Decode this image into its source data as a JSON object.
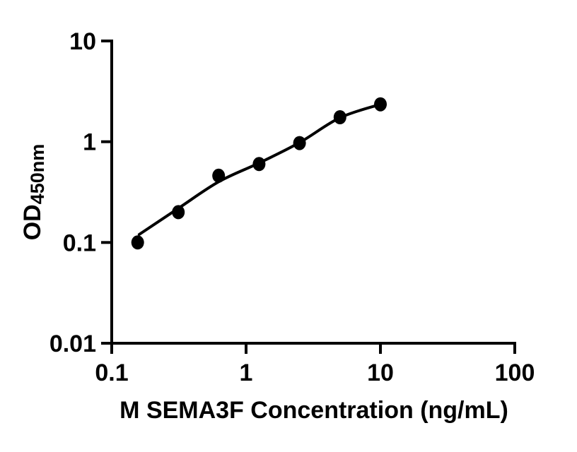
{
  "figure": {
    "background_color": "#ffffff",
    "axis_color": "#000000",
    "marker_color": "#000000",
    "curve_color": "#000000"
  },
  "chart_data": {
    "type": "scatter",
    "title": "",
    "xlabel": "M SEMA3F Concentration (ng/mL)",
    "ylabel_main": "OD",
    "ylabel_subscript": "450nm",
    "x_scale": "log10",
    "y_scale": "log10",
    "xlim": [
      0.1,
      100
    ],
    "ylim": [
      0.01,
      10
    ],
    "grid": false,
    "legend": false,
    "x_ticks": [
      {
        "value": 0.1,
        "label": "0.1"
      },
      {
        "value": 1,
        "label": "1"
      },
      {
        "value": 10,
        "label": "10"
      },
      {
        "value": 100,
        "label": "100"
      }
    ],
    "y_ticks": [
      {
        "value": 0.01,
        "label": "0.01"
      },
      {
        "value": 0.1,
        "label": "0.1"
      },
      {
        "value": 1,
        "label": "1"
      },
      {
        "value": 10,
        "label": "10"
      }
    ],
    "series": [
      {
        "name": "standard-data-points",
        "type": "scatter",
        "marker": "filled-circle",
        "x": [
          0.156,
          0.313,
          0.625,
          1.25,
          2.5,
          5,
          10
        ],
        "y": [
          0.1,
          0.2,
          0.46,
          0.6,
          0.97,
          1.75,
          2.35
        ]
      },
      {
        "name": "fitted-curve",
        "type": "line",
        "x": [
          0.16,
          0.313,
          0.625,
          1.25,
          2.5,
          5,
          10
        ],
        "y": [
          0.12,
          0.218,
          0.4,
          0.615,
          0.98,
          1.73,
          2.35
        ]
      }
    ]
  }
}
